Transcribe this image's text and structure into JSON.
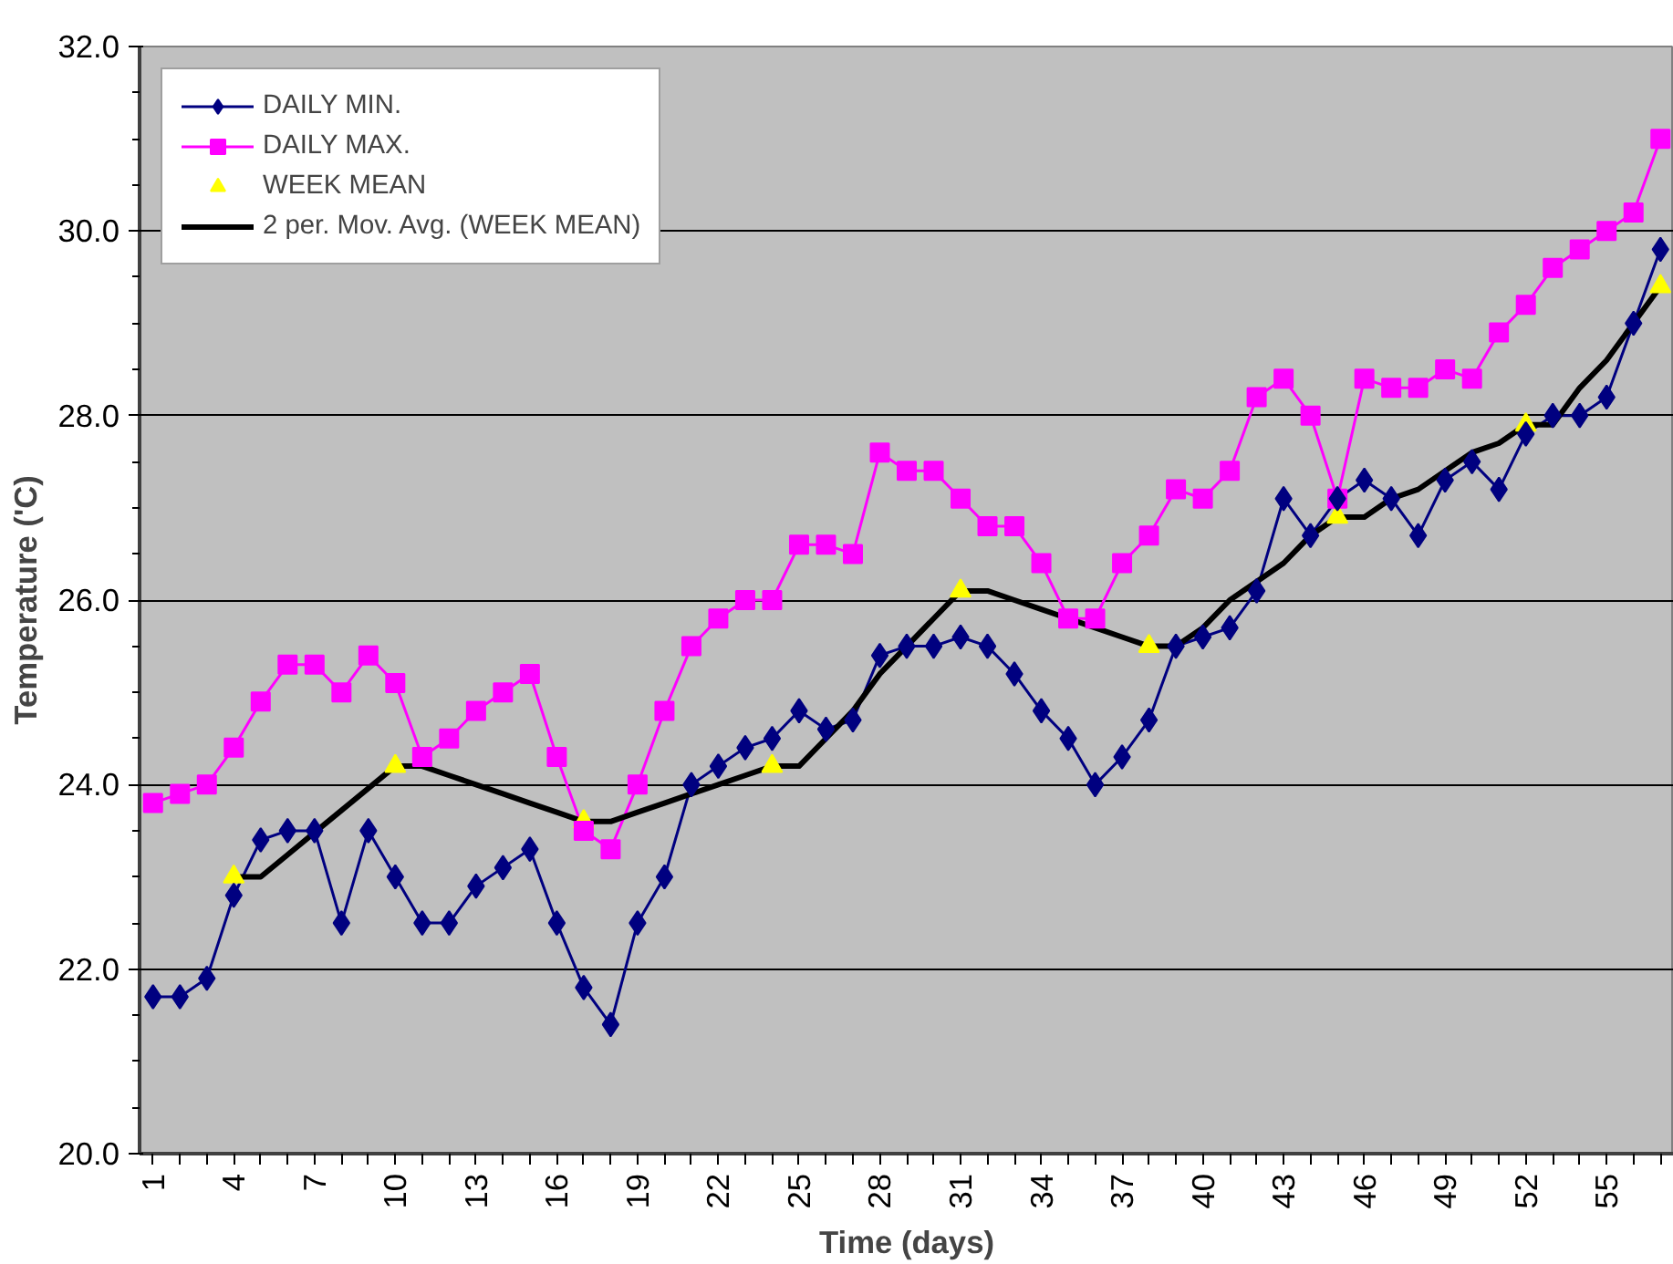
{
  "chart_data": {
    "type": "line",
    "xlabel": "Time (days)",
    "ylabel": "Temperature ('C)",
    "categories": [
      "1",
      null,
      null,
      "4",
      null,
      null,
      "7",
      null,
      null,
      "10",
      null,
      null,
      "13",
      null,
      null,
      "16",
      null,
      null,
      "19",
      null,
      null,
      "22",
      null,
      null,
      "25",
      null,
      null,
      "28",
      null,
      null,
      "31",
      null,
      null,
      "34",
      null,
      null,
      "37",
      null,
      null,
      "40",
      null,
      null,
      "43",
      null,
      null,
      "46",
      null,
      null,
      "49",
      null,
      null,
      "52",
      null,
      null,
      "55",
      null,
      null
    ],
    "series": [
      {
        "name": "DAILY MIN.",
        "color": "#000080",
        "marker": "diamond",
        "values": [
          21.7,
          21.7,
          21.9,
          22.8,
          23.4,
          23.5,
          23.5,
          22.5,
          23.5,
          23.0,
          22.5,
          22.5,
          22.9,
          23.1,
          23.3,
          22.5,
          21.8,
          21.4,
          22.5,
          23.0,
          24.0,
          24.2,
          24.4,
          24.5,
          24.8,
          24.6,
          24.7,
          25.4,
          25.5,
          25.5,
          25.6,
          25.5,
          25.2,
          24.8,
          24.5,
          24.0,
          24.3,
          24.7,
          25.5,
          25.6,
          25.7,
          26.1,
          27.1,
          26.7,
          27.1,
          27.3,
          27.1,
          26.7,
          27.3,
          27.5,
          27.2,
          27.8,
          28.0,
          28.0,
          28.2,
          29.0,
          29.8
        ]
      },
      {
        "name": "DAILY MAX.",
        "color": "#ff00ff",
        "marker": "square",
        "values": [
          23.8,
          23.9,
          24.0,
          24.4,
          24.9,
          25.3,
          25.3,
          25.0,
          25.4,
          25.1,
          24.3,
          24.5,
          24.8,
          25.0,
          25.2,
          24.3,
          23.5,
          23.3,
          24.0,
          24.8,
          25.5,
          25.8,
          26.0,
          26.0,
          26.6,
          26.6,
          26.5,
          27.6,
          27.4,
          27.4,
          27.1,
          26.8,
          26.8,
          26.4,
          25.8,
          25.8,
          26.4,
          26.7,
          27.2,
          27.1,
          27.4,
          28.2,
          28.4,
          28.0,
          27.1,
          28.4,
          28.3,
          28.3,
          28.5,
          28.4,
          28.9,
          29.2,
          29.6,
          29.8,
          30.0,
          30.2,
          31.0
        ]
      },
      {
        "name": "WEEK MEAN",
        "color": "#ffff00",
        "type": "scatter",
        "marker": "triangle",
        "values": [
          null,
          null,
          null,
          23.0,
          null,
          null,
          null,
          null,
          null,
          24.2,
          null,
          null,
          null,
          null,
          null,
          null,
          23.6,
          null,
          null,
          null,
          null,
          null,
          null,
          24.2,
          null,
          null,
          null,
          null,
          null,
          null,
          26.1,
          null,
          null,
          null,
          null,
          null,
          null,
          25.5,
          null,
          null,
          null,
          null,
          null,
          null,
          26.9,
          null,
          null,
          null,
          null,
          null,
          null,
          27.9,
          null,
          null,
          null,
          null,
          29.4
        ]
      },
      {
        "name": "2 per. Mov. Avg. (WEEK MEAN)",
        "color": "#000000",
        "marker": "none",
        "values": [
          null,
          null,
          null,
          23.0,
          23.0,
          23.24,
          23.48,
          23.72,
          23.96,
          24.2,
          24.2,
          24.1,
          24.0,
          23.9,
          23.8,
          23.7,
          23.6,
          23.6,
          23.7,
          23.8,
          23.9,
          24.0,
          24.1,
          24.2,
          24.2,
          24.5,
          24.8,
          25.2,
          25.5,
          25.8,
          26.1,
          26.1,
          26.0,
          25.9,
          25.8,
          25.7,
          25.6,
          25.5,
          25.5,
          25.7,
          26.0,
          26.2,
          26.4,
          26.7,
          26.9,
          26.9,
          27.1,
          27.2,
          27.4,
          27.6,
          27.7,
          27.9,
          27.9,
          28.3,
          28.6,
          29.0,
          29.4
        ]
      }
    ],
    "ylim": [
      20.0,
      32.0
    ],
    "yticks": [
      {
        "value": 20,
        "label": "20.0"
      },
      {
        "value": 22,
        "label": "22.0"
      },
      {
        "value": 24,
        "label": "24.0"
      },
      {
        "value": 26,
        "label": "26.0"
      },
      {
        "value": 28,
        "label": "28.0"
      },
      {
        "value": 30,
        "label": "30.0"
      },
      {
        "value": 32,
        "label": "32.0"
      }
    ],
    "grid": "y",
    "legend": "top left",
    "line_style": "solid"
  }
}
